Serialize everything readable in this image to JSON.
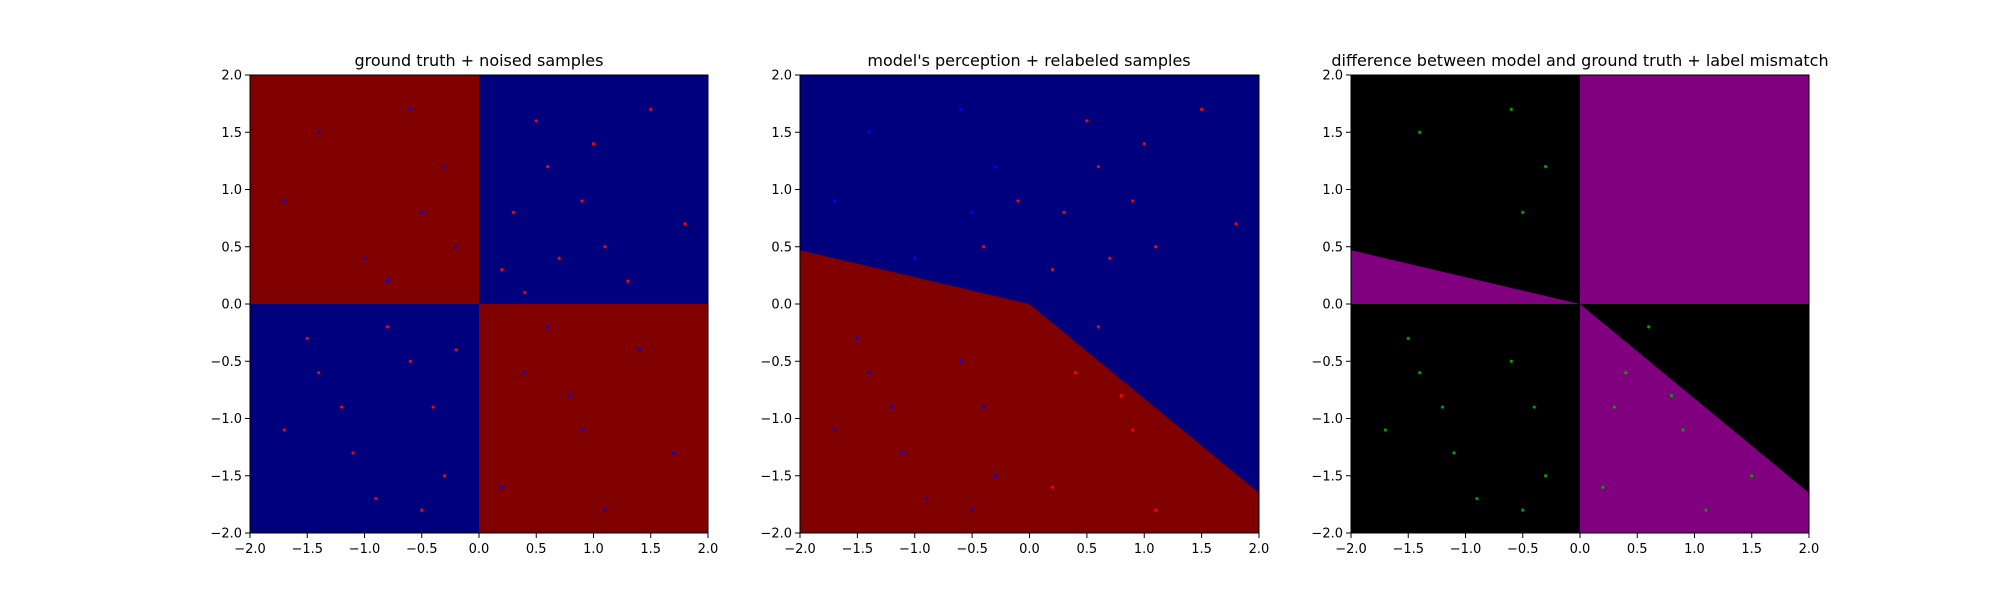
{
  "colors": {
    "class_red": "#800000",
    "class_blue": "#00007f",
    "point_red": "#ff0000",
    "point_blue": "#0000ff",
    "diff_match": "#000000",
    "diff_mismatch": "#800080",
    "point_mismatch": "#00a000"
  },
  "chart_data": [
    {
      "type": "scatter",
      "title": "ground truth + noised samples",
      "xlim": [
        -2.0,
        2.0
      ],
      "ylim": [
        -2.0,
        2.0
      ],
      "x_ticks": [
        "−2.0",
        "−1.5",
        "−1.0",
        "−0.5",
        "0.0",
        "0.5",
        "1.0",
        "1.5",
        "2.0"
      ],
      "y_ticks": [
        "−2.0",
        "−1.5",
        "−1.0",
        "−0.5",
        "0.0",
        "0.5",
        "1.0",
        "1.5",
        "2.0"
      ],
      "background": "quadrant checkerboard: top-left and bottom-right dark red, top-right and bottom-left dark blue",
      "series": [
        {
          "color": "#ff0000",
          "points": [
            [
              0.3,
              0.8
            ],
            [
              0.6,
              1.2
            ],
            [
              1.1,
              0.5
            ],
            [
              1.5,
              1.7
            ],
            [
              0.2,
              0.3
            ],
            [
              0.9,
              0.9
            ],
            [
              1.3,
              0.2
            ],
            [
              0.5,
              1.6
            ],
            [
              1.8,
              0.7
            ],
            [
              0.7,
              0.4
            ],
            [
              1.0,
              1.4
            ],
            [
              0.4,
              0.1
            ],
            [
              -0.6,
              -0.5
            ],
            [
              -1.2,
              -0.9
            ],
            [
              -0.3,
              -1.5
            ],
            [
              -1.5,
              -0.3
            ],
            [
              -0.9,
              -1.7
            ],
            [
              -0.2,
              -0.4
            ],
            [
              -1.7,
              -1.1
            ],
            [
              -0.8,
              -0.2
            ],
            [
              -1.1,
              -1.3
            ],
            [
              -0.4,
              -0.9
            ],
            [
              -1.4,
              -0.6
            ],
            [
              -0.5,
              -1.8
            ]
          ]
        },
        {
          "color": "#0000ff",
          "points": [
            [
              -0.5,
              0.8
            ],
            [
              -1.0,
              0.4
            ],
            [
              -0.3,
              1.2
            ],
            [
              -1.4,
              1.5
            ],
            [
              -0.8,
              0.2
            ],
            [
              -1.7,
              0.9
            ],
            [
              -0.2,
              0.5
            ],
            [
              -0.6,
              1.7
            ],
            [
              0.4,
              -0.6
            ],
            [
              0.9,
              -1.1
            ],
            [
              1.4,
              -0.4
            ],
            [
              0.2,
              -1.6
            ],
            [
              1.1,
              -1.8
            ],
            [
              0.6,
              -0.2
            ],
            [
              1.7,
              -1.3
            ],
            [
              0.8,
              -0.8
            ]
          ]
        }
      ]
    },
    {
      "type": "scatter",
      "title": "model's perception + relabeled samples",
      "xlim": [
        -2.0,
        2.0
      ],
      "ylim": [
        -2.0,
        2.0
      ],
      "x_ticks": [
        "−2.0",
        "−1.5",
        "−1.0",
        "−0.5",
        "0.0",
        "0.5",
        "1.0",
        "1.5",
        "2.0"
      ],
      "y_ticks": [
        "−2.0",
        "−1.5",
        "−1.0",
        "−0.5",
        "0.0",
        "0.5",
        "1.0",
        "1.5",
        "2.0"
      ],
      "background": "dark red below a boundary through (-2,0.47), (0,0), (2,-1.65); dark blue above",
      "series": [
        {
          "color": "#ff0000",
          "points": [
            [
              0.3,
              0.8
            ],
            [
              0.6,
              1.2
            ],
            [
              1.1,
              0.5
            ],
            [
              1.5,
              1.7
            ],
            [
              0.2,
              0.3
            ],
            [
              0.9,
              0.9
            ],
            [
              0.5,
              1.6
            ],
            [
              1.8,
              0.7
            ],
            [
              0.7,
              0.4
            ],
            [
              1.0,
              1.4
            ],
            [
              0.4,
              -0.6
            ],
            [
              0.9,
              -1.1
            ],
            [
              0.2,
              -1.6
            ],
            [
              1.1,
              -1.8
            ],
            [
              0.6,
              -0.2
            ],
            [
              0.8,
              -0.8
            ],
            [
              -0.1,
              0.9
            ],
            [
              -0.4,
              0.5
            ]
          ]
        },
        {
          "color": "#0000ff",
          "points": [
            [
              -0.5,
              0.8
            ],
            [
              -1.0,
              0.4
            ],
            [
              -0.3,
              1.2
            ],
            [
              -1.4,
              1.5
            ],
            [
              -1.7,
              0.9
            ],
            [
              -0.6,
              1.7
            ],
            [
              -0.6,
              -0.5
            ],
            [
              -1.2,
              -0.9
            ],
            [
              -0.3,
              -1.5
            ],
            [
              -1.5,
              -0.3
            ],
            [
              -0.9,
              -1.7
            ],
            [
              -1.7,
              -1.1
            ],
            [
              -1.1,
              -1.3
            ],
            [
              -0.4,
              -0.9
            ],
            [
              -1.4,
              -0.6
            ],
            [
              -0.5,
              -1.8
            ]
          ]
        }
      ]
    },
    {
      "type": "scatter",
      "title": "difference between model and ground truth + label mismatch",
      "xlim": [
        -2.0,
        2.0
      ],
      "ylim": [
        -2.0,
        2.0
      ],
      "x_ticks": [
        "−2.0",
        "−1.5",
        "−1.0",
        "−0.5",
        "0.0",
        "0.5",
        "1.0",
        "1.5",
        "2.0"
      ],
      "y_ticks": [
        "−2.0",
        "−1.5",
        "−1.0",
        "−0.5",
        "0.0",
        "0.5",
        "1.0",
        "1.5",
        "2.0"
      ],
      "background": "purple where the model disagrees with ground truth (top-right quadrant, wedge between y=0 and the model boundary), black elsewhere",
      "series": [
        {
          "color": "#00a000",
          "points": [
            [
              -0.6,
              -0.5
            ],
            [
              -1.2,
              -0.9
            ],
            [
              -0.3,
              -1.5
            ],
            [
              -1.5,
              -0.3
            ],
            [
              -0.9,
              -1.7
            ],
            [
              -1.7,
              -1.1
            ],
            [
              -1.1,
              -1.3
            ],
            [
              -0.4,
              -0.9
            ],
            [
              -1.4,
              -0.6
            ],
            [
              -0.5,
              -1.8
            ],
            [
              -0.5,
              0.8
            ],
            [
              -0.3,
              1.2
            ],
            [
              -1.4,
              1.5
            ],
            [
              -0.6,
              1.7
            ],
            [
              0.4,
              -0.6
            ],
            [
              0.9,
              -1.1
            ],
            [
              0.2,
              -1.6
            ],
            [
              1.1,
              -1.8
            ],
            [
              0.6,
              -0.2
            ],
            [
              0.8,
              -0.8
            ],
            [
              1.5,
              -1.5
            ],
            [
              0.3,
              -0.9
            ]
          ]
        }
      ]
    }
  ]
}
